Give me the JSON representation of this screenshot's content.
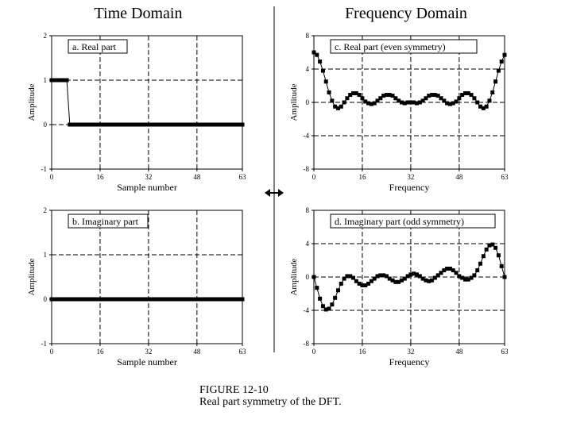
{
  "headings": {
    "time": "Time Domain",
    "frequency": "Frequency Domain"
  },
  "caption": {
    "number": "FIGURE 12-10",
    "text": "Real part symmetry of the DFT."
  },
  "chart_data": [
    {
      "type": "scatter",
      "label": "a.  Real part",
      "xlabel": "Sample number",
      "ylabel": "Amplitude",
      "xlim": [
        0,
        63
      ],
      "ylim": [
        -1,
        2
      ],
      "xticks": [
        0,
        16,
        32,
        48,
        63
      ],
      "yticks": [
        -1,
        0,
        1,
        2
      ],
      "grid": true,
      "x": [
        0,
        1,
        2,
        3,
        4,
        5,
        6,
        7,
        8,
        9,
        10,
        11,
        12,
        13,
        14,
        15,
        16,
        17,
        18,
        19,
        20,
        21,
        22,
        23,
        24,
        25,
        26,
        27,
        28,
        29,
        30,
        31,
        32,
        33,
        34,
        35,
        36,
        37,
        38,
        39,
        40,
        41,
        42,
        43,
        44,
        45,
        46,
        47,
        48,
        49,
        50,
        51,
        52,
        53,
        54,
        55,
        56,
        57,
        58,
        59,
        60,
        61,
        62,
        63
      ],
      "y": [
        1,
        1,
        1,
        1,
        1,
        1,
        0,
        0,
        0,
        0,
        0,
        0,
        0,
        0,
        0,
        0,
        0,
        0,
        0,
        0,
        0,
        0,
        0,
        0,
        0,
        0,
        0,
        0,
        0,
        0,
        0,
        0,
        0,
        0,
        0,
        0,
        0,
        0,
        0,
        0,
        0,
        0,
        0,
        0,
        0,
        0,
        0,
        0,
        0,
        0,
        0,
        0,
        0,
        0,
        0,
        0,
        0,
        0,
        0,
        0,
        0,
        0,
        0,
        0
      ]
    },
    {
      "type": "scatter",
      "label": "b.  Imaginary part",
      "xlabel": "Sample number",
      "ylabel": "Amplitude",
      "xlim": [
        0,
        63
      ],
      "ylim": [
        -1,
        2
      ],
      "xticks": [
        0,
        16,
        32,
        48,
        63
      ],
      "yticks": [
        -1,
        0,
        1,
        2
      ],
      "grid": true,
      "x": [
        0,
        1,
        2,
        3,
        4,
        5,
        6,
        7,
        8,
        9,
        10,
        11,
        12,
        13,
        14,
        15,
        16,
        17,
        18,
        19,
        20,
        21,
        22,
        23,
        24,
        25,
        26,
        27,
        28,
        29,
        30,
        31,
        32,
        33,
        34,
        35,
        36,
        37,
        38,
        39,
        40,
        41,
        42,
        43,
        44,
        45,
        46,
        47,
        48,
        49,
        50,
        51,
        52,
        53,
        54,
        55,
        56,
        57,
        58,
        59,
        60,
        61,
        62,
        63
      ],
      "y": [
        0,
        0,
        0,
        0,
        0,
        0,
        0,
        0,
        0,
        0,
        0,
        0,
        0,
        0,
        0,
        0,
        0,
        0,
        0,
        0,
        0,
        0,
        0,
        0,
        0,
        0,
        0,
        0,
        0,
        0,
        0,
        0,
        0,
        0,
        0,
        0,
        0,
        0,
        0,
        0,
        0,
        0,
        0,
        0,
        0,
        0,
        0,
        0,
        0,
        0,
        0,
        0,
        0,
        0,
        0,
        0,
        0,
        0,
        0,
        0,
        0,
        0,
        0,
        0
      ]
    },
    {
      "type": "line",
      "label": "c.  Real part  (even symmetry)",
      "xlabel": "Frequency",
      "ylabel": "Amplitude",
      "xlim": [
        0,
        63
      ],
      "ylim": [
        -8,
        8
      ],
      "xticks": [
        0,
        16,
        32,
        48,
        63
      ],
      "yticks": [
        -8,
        -4,
        0,
        4,
        8
      ],
      "grid": true,
      "x": [
        0,
        1,
        2,
        3,
        4,
        5,
        6,
        7,
        8,
        9,
        10,
        11,
        12,
        13,
        14,
        15,
        16,
        17,
        18,
        19,
        20,
        21,
        22,
        23,
        24,
        25,
        26,
        27,
        28,
        29,
        30,
        31,
        32,
        33,
        34,
        35,
        36,
        37,
        38,
        39,
        40,
        41,
        42,
        43,
        44,
        45,
        46,
        47,
        48,
        49,
        50,
        51,
        52,
        53,
        54,
        55,
        56,
        57,
        58,
        59,
        60,
        61,
        62,
        63
      ],
      "y": [
        6.0,
        5.7,
        4.9,
        3.8,
        2.5,
        1.2,
        0.2,
        -0.5,
        -0.7,
        -0.5,
        0.0,
        0.5,
        0.9,
        1.1,
        1.1,
        0.9,
        0.5,
        0.1,
        -0.1,
        -0.2,
        -0.1,
        0.2,
        0.5,
        0.8,
        0.9,
        0.9,
        0.8,
        0.5,
        0.2,
        0.0,
        -0.1,
        0.0,
        0.0,
        0.0,
        -0.1,
        0.0,
        0.2,
        0.5,
        0.8,
        0.9,
        0.9,
        0.8,
        0.5,
        0.2,
        -0.1,
        -0.2,
        -0.1,
        0.1,
        0.5,
        0.9,
        1.1,
        1.1,
        0.9,
        0.5,
        0.0,
        -0.5,
        -0.7,
        -0.5,
        0.2,
        1.2,
        2.5,
        3.8,
        4.9,
        5.7
      ]
    },
    {
      "type": "line",
      "label": "d.  Imaginary part  (odd symmetry)",
      "xlabel": "Frequency",
      "ylabel": "Amplitude",
      "xlim": [
        0,
        63
      ],
      "ylim": [
        -8,
        8
      ],
      "xticks": [
        0,
        16,
        32,
        48,
        63
      ],
      "yticks": [
        -8,
        -4,
        0,
        4,
        8
      ],
      "grid": true,
      "x": [
        0,
        1,
        2,
        3,
        4,
        5,
        6,
        7,
        8,
        9,
        10,
        11,
        12,
        13,
        14,
        15,
        16,
        17,
        18,
        19,
        20,
        21,
        22,
        23,
        24,
        25,
        26,
        27,
        28,
        29,
        30,
        31,
        32,
        33,
        34,
        35,
        36,
        37,
        38,
        39,
        40,
        41,
        42,
        43,
        44,
        45,
        46,
        47,
        48,
        49,
        50,
        51,
        52,
        53,
        54,
        55,
        56,
        57,
        58,
        59,
        60,
        61,
        62,
        63
      ],
      "y": [
        0.0,
        -1.3,
        -2.6,
        -3.5,
        -3.9,
        -3.8,
        -3.3,
        -2.5,
        -1.6,
        -0.8,
        -0.2,
        0.1,
        0.1,
        -0.1,
        -0.5,
        -0.8,
        -1.0,
        -1.0,
        -0.8,
        -0.5,
        -0.2,
        0.1,
        0.2,
        0.2,
        0.1,
        -0.2,
        -0.4,
        -0.6,
        -0.6,
        -0.4,
        -0.2,
        0.1,
        0.3,
        0.4,
        0.3,
        0.1,
        -0.2,
        -0.4,
        -0.5,
        -0.4,
        -0.1,
        0.2,
        0.5,
        0.8,
        1.0,
        1.0,
        0.8,
        0.5,
        0.1,
        -0.1,
        -0.3,
        -0.3,
        -0.1,
        0.2,
        0.8,
        1.6,
        2.5,
        3.3,
        3.8,
        3.9,
        3.5,
        2.6,
        1.3,
        0.0
      ]
    }
  ]
}
